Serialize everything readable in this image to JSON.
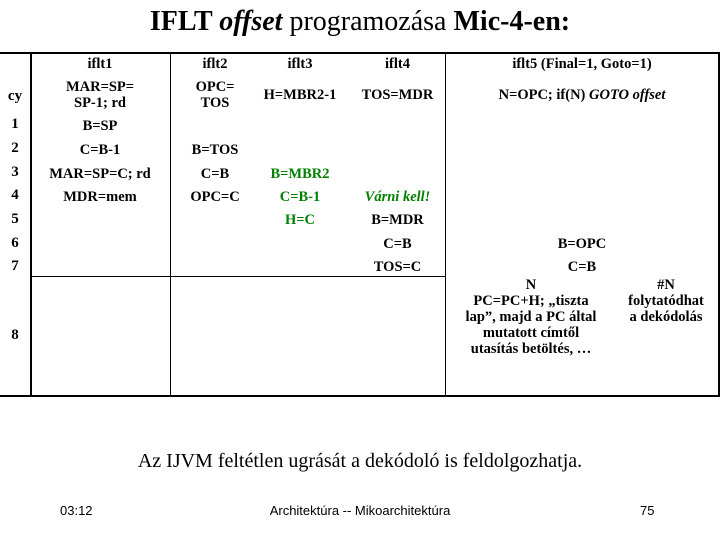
{
  "title": {
    "prefix": "IFLT ",
    "italic": "offset",
    "middle": " programozása ",
    "suffix": "Mic-4-en:"
  },
  "table": {
    "cy_header": "cy",
    "cycles": [
      "1",
      "2",
      "3",
      "4",
      "5",
      "6",
      "7",
      "8"
    ],
    "iflt1": {
      "name": "iflt1",
      "op": "MAR=SP=\nSP-1; rd",
      "c1": "B=SP",
      "c2": "C=B-1",
      "c3": "MAR=SP=C; rd",
      "c4": "MDR=mem"
    },
    "iflt2": {
      "name": "iflt2",
      "op": "OPC=\nTOS",
      "c2": "B=TOS",
      "c3": "C=B",
      "c4": "OPC=C"
    },
    "iflt3": {
      "name": "iflt3",
      "op": "H=MBR2-1",
      "c3": "B=MBR2",
      "c4": "C=B-1",
      "c5": "H=C"
    },
    "iflt4": {
      "name": "iflt4",
      "op": "TOS=MDR",
      "c4": "Várni kell!",
      "c5": "B=MDR",
      "c6": "C=B",
      "c7": "TOS=C"
    },
    "iflt5": {
      "name": "iflt5 (Final=1, Goto=1)",
      "op_plain": "N=OPC; if(N) ",
      "op_italic": "GOTO offset",
      "c6": "B=OPC",
      "c7": "C=B",
      "n_label": "N",
      "n_text": "PC=PC+H; „tiszta\nlap”, majd a PC által\nmutatott címtől\nutasítás betöltés, …",
      "notn_label": "#N",
      "notn_text": "folytatódhat\na dekódolás"
    }
  },
  "note": "Az IJVM feltétlen ugrását a dekódoló is feldolgozhatja.",
  "footer": {
    "time": "03:12",
    "center": "Architektúra -- Mikoarchitektúra",
    "page": "75"
  }
}
